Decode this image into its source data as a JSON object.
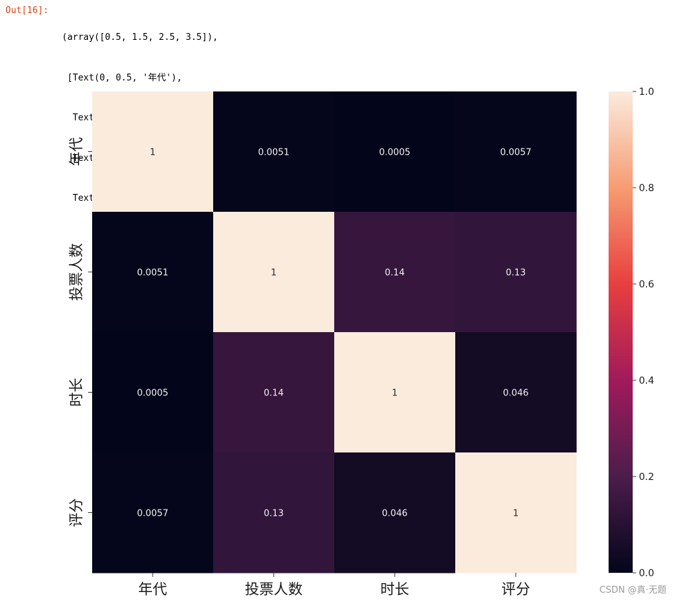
{
  "output_cell": {
    "prompt": "Out[16]:",
    "lines": [
      "(array([0.5, 1.5, 2.5, 3.5]),",
      " [Text(0, 0.5, '年代'),",
      "  Text(0, 1.5, '投票人数'),",
      "  Text(0, 2.5, '时长'),",
      "  Text(0, 3.5, '评分')])"
    ]
  },
  "chart_data": {
    "type": "heatmap",
    "title": "",
    "xlabel": "",
    "ylabel": "",
    "x_categories": [
      "年代",
      "投票人数",
      "时长",
      "评分"
    ],
    "y_categories": [
      "年代",
      "投票人数",
      "时长",
      "评分"
    ],
    "values": [
      [
        1,
        0.0051,
        0.0005,
        0.0057
      ],
      [
        0.0051,
        1,
        0.14,
        0.13
      ],
      [
        0.0005,
        0.14,
        1,
        0.046
      ],
      [
        0.0057,
        0.13,
        0.046,
        1
      ]
    ],
    "annotations": [
      [
        "1",
        "0.0051",
        "0.0005",
        "0.0057"
      ],
      [
        "0.0051",
        "1",
        "0.14",
        "0.13"
      ],
      [
        "0.0005",
        "0.14",
        "1",
        "0.046"
      ],
      [
        "0.0057",
        "0.13",
        "0.046",
        "1"
      ]
    ],
    "colorbar": {
      "range": [
        0,
        1
      ],
      "ticks": [
        0.0,
        0.2,
        0.4,
        0.6,
        0.8,
        1.0
      ],
      "tick_labels": [
        "0.0",
        "0.2",
        "0.4",
        "0.6",
        "0.8",
        "1.0"
      ],
      "colormap": "rocket",
      "colormap_stops": [
        "#03051a",
        "#4c1d4b",
        "#a11a5b",
        "#e83f3f",
        "#f69c73",
        "#faebdd"
      ]
    }
  },
  "watermark": "CSDN @真·无题"
}
